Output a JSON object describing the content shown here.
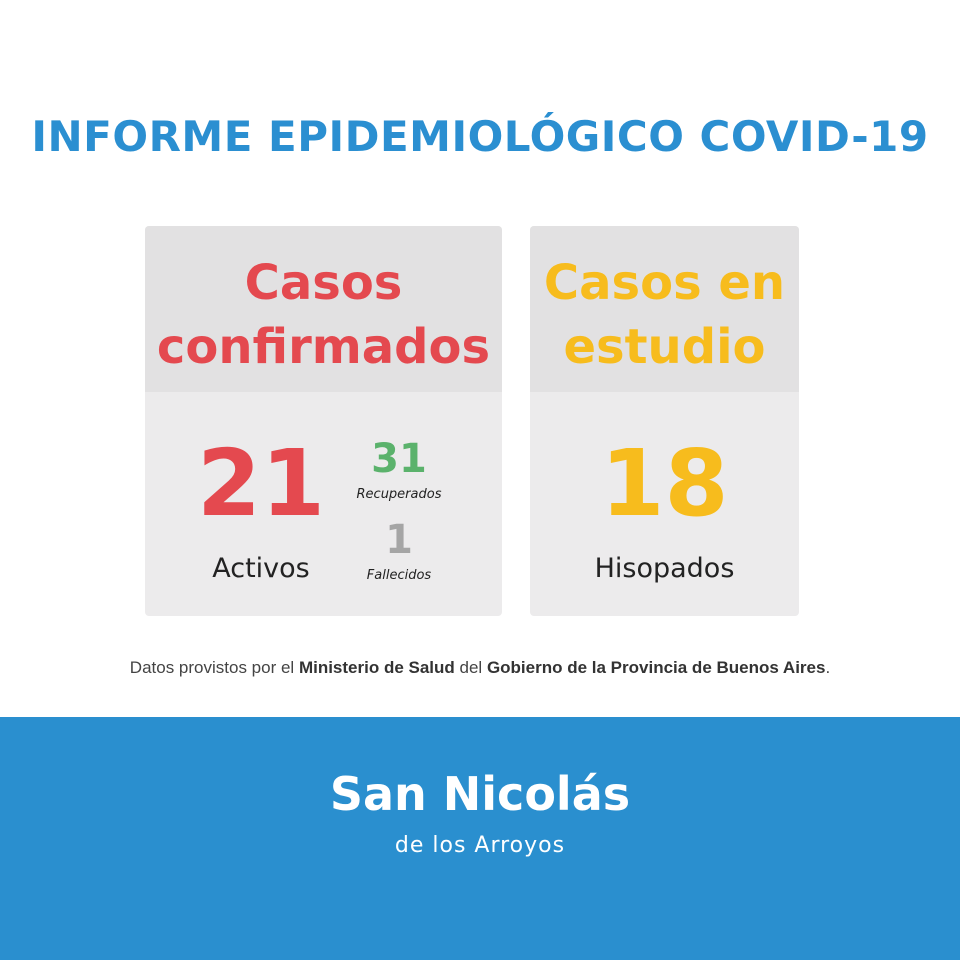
{
  "colors": {
    "title": "#2b8fd1",
    "red": "#e4494f",
    "yellow": "#f7bc1d",
    "green": "#5bb26c",
    "gray": "#a5a5a5",
    "footer": "#2a8fcf"
  },
  "title": "INFORME EPIDEMIOLÓGICO COVID-19",
  "confirmed": {
    "heading_line1": "Casos",
    "heading_line2": "confirmados",
    "active_value": "21",
    "active_label": "Activos",
    "recovered_value": "31",
    "recovered_label": "Recuperados",
    "deceased_value": "1",
    "deceased_label": "Fallecidos"
  },
  "study": {
    "heading_line1": "Casos en",
    "heading_line2": "estudio",
    "swabs_value": "18",
    "swabs_label": "Hisopados"
  },
  "note": {
    "part1": "Datos provistos por el ",
    "ministry": "Ministerio de Salud",
    "part2": " del ",
    "government": "Gobierno de la Provincia de Buenos Aires",
    "part3": "."
  },
  "brand": {
    "name": "San Nicolás",
    "subtitle": "de los Arroyos"
  }
}
